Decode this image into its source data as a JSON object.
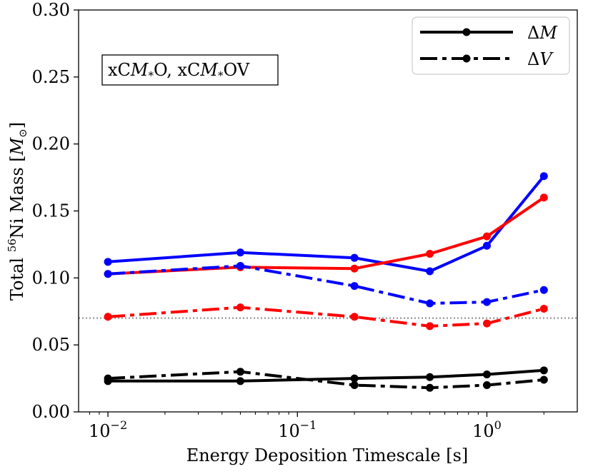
{
  "chart_data": {
    "type": "line",
    "title": "",
    "xlabel": "Energy Deposition Timescale [s]",
    "ylabel_parts": {
      "pre": "Total ",
      "sup": "56",
      "mid": "Ni Mass [",
      "sym": "M",
      "sub": "⊙",
      "post": "]"
    },
    "xscale": "log",
    "xlim": [
      0.007,
      3.0
    ],
    "ylim": [
      0.0,
      0.3
    ],
    "yticks": [
      0.0,
      0.05,
      0.1,
      0.15,
      0.2,
      0.25,
      0.3
    ],
    "ytick_labels": [
      "0.00",
      "0.05",
      "0.10",
      "0.15",
      "0.20",
      "0.25",
      "0.30"
    ],
    "xticks": [
      {
        "value": 0.01,
        "base": "10",
        "exp": "−2"
      },
      {
        "value": 0.1,
        "base": "10",
        "exp": "−1"
      },
      {
        "value": 1.0,
        "base": "10",
        "exp": "0"
      }
    ],
    "x": [
      0.01,
      0.05,
      0.2,
      0.5,
      1.0,
      2.0
    ],
    "reference_line": {
      "y": 0.07,
      "color": "#a0a0a0",
      "style": "dotted"
    },
    "annotation": {
      "text": "xCM*O, xCM*OV",
      "parts": [
        "xC",
        "M",
        "*",
        "O, xC",
        "M",
        "*",
        "OV"
      ],
      "location": "upper-left"
    },
    "legend": {
      "location": "upper-right",
      "entries": [
        {
          "label_prefix": "Δ",
          "label_var": "M",
          "style": "solid"
        },
        {
          "label_prefix": "Δ",
          "label_var": "V",
          "style": "dashdot"
        }
      ]
    },
    "series": [
      {
        "name": "blue ΔM",
        "color": "#0000ff",
        "style": "solid",
        "values": [
          0.112,
          0.119,
          0.115,
          0.105,
          0.124,
          0.176
        ]
      },
      {
        "name": "red ΔM",
        "color": "#ff0000",
        "style": "solid",
        "values": [
          0.103,
          0.108,
          0.107,
          0.118,
          0.131,
          0.16
        ]
      },
      {
        "name": "blue ΔV",
        "color": "#0000ff",
        "style": "dashdot",
        "values": [
          0.103,
          0.109,
          0.094,
          0.081,
          0.082,
          0.091
        ]
      },
      {
        "name": "red ΔV",
        "color": "#ff0000",
        "style": "dashdot",
        "values": [
          0.071,
          0.078,
          0.071,
          0.064,
          0.066,
          0.077
        ]
      },
      {
        "name": "black ΔM",
        "color": "#000000",
        "style": "solid",
        "values": [
          0.023,
          0.023,
          0.025,
          0.026,
          0.028,
          0.031
        ]
      },
      {
        "name": "black ΔV",
        "color": "#000000",
        "style": "dashdot",
        "values": [
          0.025,
          0.03,
          0.02,
          0.018,
          0.02,
          0.024
        ]
      }
    ]
  }
}
